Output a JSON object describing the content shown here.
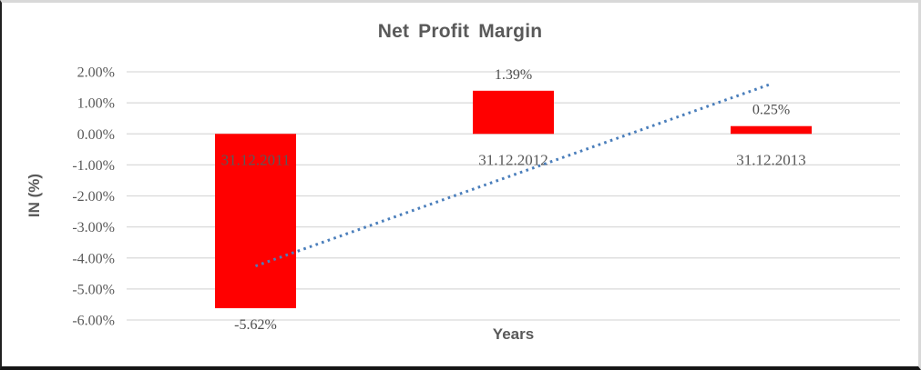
{
  "chart_data": {
    "type": "bar",
    "title": "Net Profit Margin",
    "xlabel": "Years",
    "ylabel": "IN (%)",
    "categories": [
      "31.12.2011",
      "31.12.2012",
      "31.12.2013"
    ],
    "values": [
      -5.62,
      1.39,
      0.25
    ],
    "data_labels": [
      "-5.62%",
      "1.39%",
      "0.25%"
    ],
    "ylim": [
      -6,
      2
    ],
    "y_tick_step": 1,
    "y_tick_labels": [
      "2.00%",
      "1.00%",
      "0.00%",
      "-1.00%",
      "-2.00%",
      "-3.00%",
      "-4.00%",
      "-5.00%",
      "-6.00%"
    ],
    "grid": true,
    "legend": "none",
    "trendline": {
      "style": "dotted",
      "start_value": -4.26,
      "end_value": 1.61
    },
    "colors": {
      "bar": "#FF0000",
      "grid": "#D9D9D9",
      "trendline": "#4A7EBB",
      "text": "#595959"
    }
  }
}
